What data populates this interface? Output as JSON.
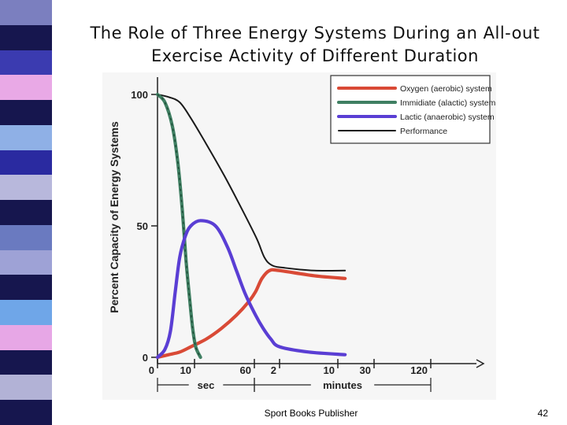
{
  "slide": {
    "title_line1": "The Role of Three Energy Systems During an All-out",
    "title_line2": "Exercise Activity of Different Duration",
    "footer_text": "Sport Books Publisher",
    "page_number": "42",
    "stripe_colors": [
      "#7b7fbf",
      "#16164e",
      "#3b3bb0",
      "#e9a9e6",
      "#16164e",
      "#8fb0e6",
      "#2a2aa0",
      "#b8b8dc",
      "#16164e",
      "#6a7ac0",
      "#9ea2d6",
      "#16164e",
      "#6fa6e8",
      "#e7a7e6",
      "#16164e",
      "#b2b2d6",
      "#16164e"
    ]
  },
  "chart_data": {
    "type": "line",
    "ylabel": "Percent Capacity of Energy Systems",
    "y_ticks": [
      "0",
      "50",
      "100"
    ],
    "x_ticks": [
      "0",
      "10",
      "60",
      "2",
      "10",
      "30",
      "120"
    ],
    "x_units": [
      {
        "label": "sec",
        "from_tick": 0,
        "to_tick": 2
      },
      {
        "label": "minutes",
        "from_tick": 2,
        "to_tick": 6
      }
    ],
    "ylim": [
      0,
      100
    ],
    "legend_position": "top-right",
    "grid": false,
    "series": [
      {
        "name": "Oxygen (aerobic) system",
        "color": "#d94a36",
        "points": [
          [
            0,
            0
          ],
          [
            0.3,
            1
          ],
          [
            0.6,
            2
          ],
          [
            0.9,
            4
          ],
          [
            1.2,
            7
          ],
          [
            1.45,
            11
          ],
          [
            1.7,
            16
          ],
          [
            1.9,
            21
          ],
          [
            2.05,
            25
          ],
          [
            2.3,
            30
          ],
          [
            2.6,
            33
          ],
          [
            3.0,
            33
          ],
          [
            3.6,
            31
          ],
          [
            4.2,
            30
          ]
        ]
      },
      {
        "name": "Immidiate (alactic) system",
        "color": "#3f7f62",
        "points": [
          [
            0,
            100
          ],
          [
            0.2,
            97
          ],
          [
            0.4,
            88
          ],
          [
            0.55,
            74
          ],
          [
            0.67,
            56
          ],
          [
            0.77,
            37
          ],
          [
            0.87,
            22
          ],
          [
            0.95,
            11
          ],
          [
            1.02,
            4
          ],
          [
            1.1,
            0
          ]
        ]
      },
      {
        "name": "Lactic (anaerobic) system",
        "color": "#5a3ed4",
        "points": [
          [
            0,
            0
          ],
          [
            0.2,
            3
          ],
          [
            0.35,
            10
          ],
          [
            0.48,
            25
          ],
          [
            0.6,
            38
          ],
          [
            0.75,
            46
          ],
          [
            0.9,
            50
          ],
          [
            1.1,
            52
          ],
          [
            1.35,
            50
          ],
          [
            1.55,
            42
          ],
          [
            1.7,
            33
          ],
          [
            1.85,
            24
          ],
          [
            2.05,
            16
          ],
          [
            2.35,
            11
          ],
          [
            2.65,
            7
          ],
          [
            3.0,
            4
          ],
          [
            3.5,
            2
          ],
          [
            4.2,
            1
          ]
        ]
      },
      {
        "name": "Performance",
        "color": "#1a1a1a",
        "points": [
          [
            0,
            100
          ],
          [
            0.3,
            99
          ],
          [
            0.6,
            97
          ],
          [
            0.9,
            91
          ],
          [
            1.2,
            81
          ],
          [
            1.5,
            69
          ],
          [
            1.8,
            56
          ],
          [
            2.1,
            45
          ],
          [
            2.4,
            38
          ],
          [
            2.7,
            35
          ],
          [
            3.1,
            34
          ],
          [
            3.6,
            33
          ],
          [
            4.2,
            33
          ]
        ]
      }
    ]
  }
}
